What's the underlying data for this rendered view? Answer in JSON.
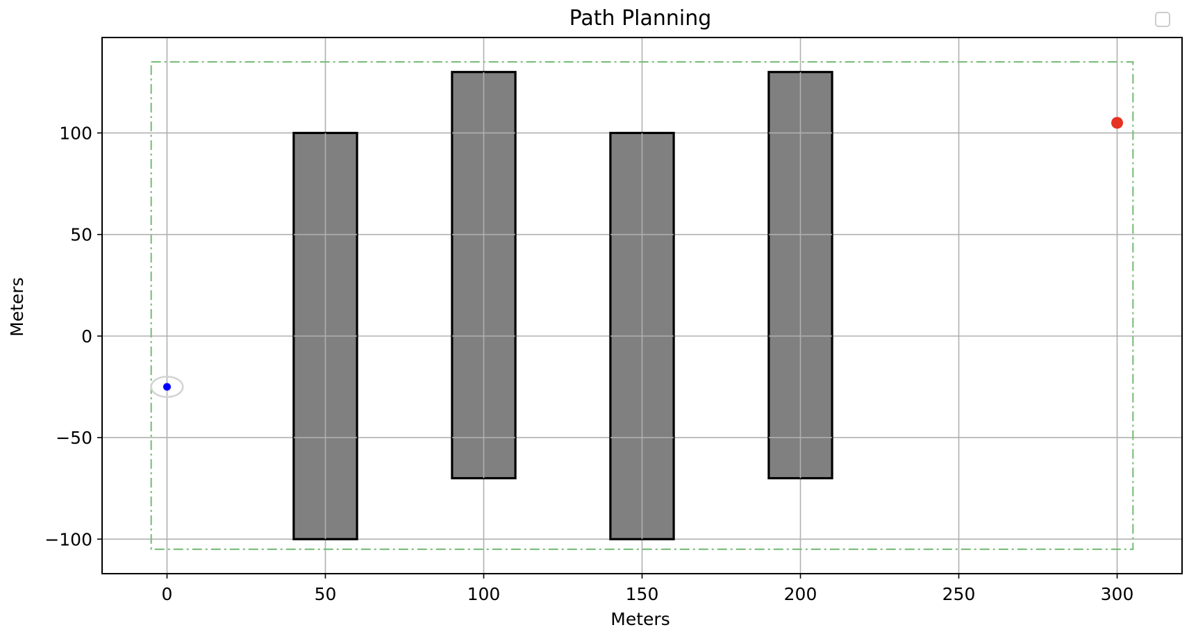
{
  "chart_data": {
    "type": "scatter",
    "title": "Path Planning",
    "xlabel": "Meters",
    "ylabel": "Meters",
    "xlim": [
      -20.5,
      320.5
    ],
    "ylim": [
      -117,
      147
    ],
    "xticks": [
      0,
      50,
      100,
      150,
      200,
      250,
      300
    ],
    "yticks": [
      -100,
      -50,
      0,
      50,
      100
    ],
    "xtick_labels": [
      "0",
      "50",
      "100",
      "150",
      "200",
      "250",
      "300"
    ],
    "ytick_labels": [
      "−100",
      "−50",
      "0",
      "50",
      "100"
    ],
    "grid": true,
    "legend": {
      "placement": "upper-right",
      "entries": []
    },
    "boundary": {
      "x": [
        -5,
        305
      ],
      "y": [
        -105,
        135
      ],
      "color": "#7fbf7f",
      "style": "dash-dot"
    },
    "obstacles": [
      {
        "x": [
          40,
          60
        ],
        "y": [
          -100,
          100
        ]
      },
      {
        "x": [
          90,
          110
        ],
        "y": [
          -70,
          130
        ]
      },
      {
        "x": [
          140,
          160
        ],
        "y": [
          -100,
          100
        ]
      },
      {
        "x": [
          190,
          210
        ],
        "y": [
          -70,
          130
        ]
      }
    ],
    "obstacle_fill": "#808080",
    "obstacle_edge": "#000000",
    "start": {
      "x": 0,
      "y": -25,
      "color": "#0000ff"
    },
    "start_marker_ring": {
      "rx": 5,
      "ry": 5,
      "color": "#d3d3d3"
    },
    "goal": {
      "x": 300,
      "y": 105,
      "color": "#e53222"
    }
  }
}
